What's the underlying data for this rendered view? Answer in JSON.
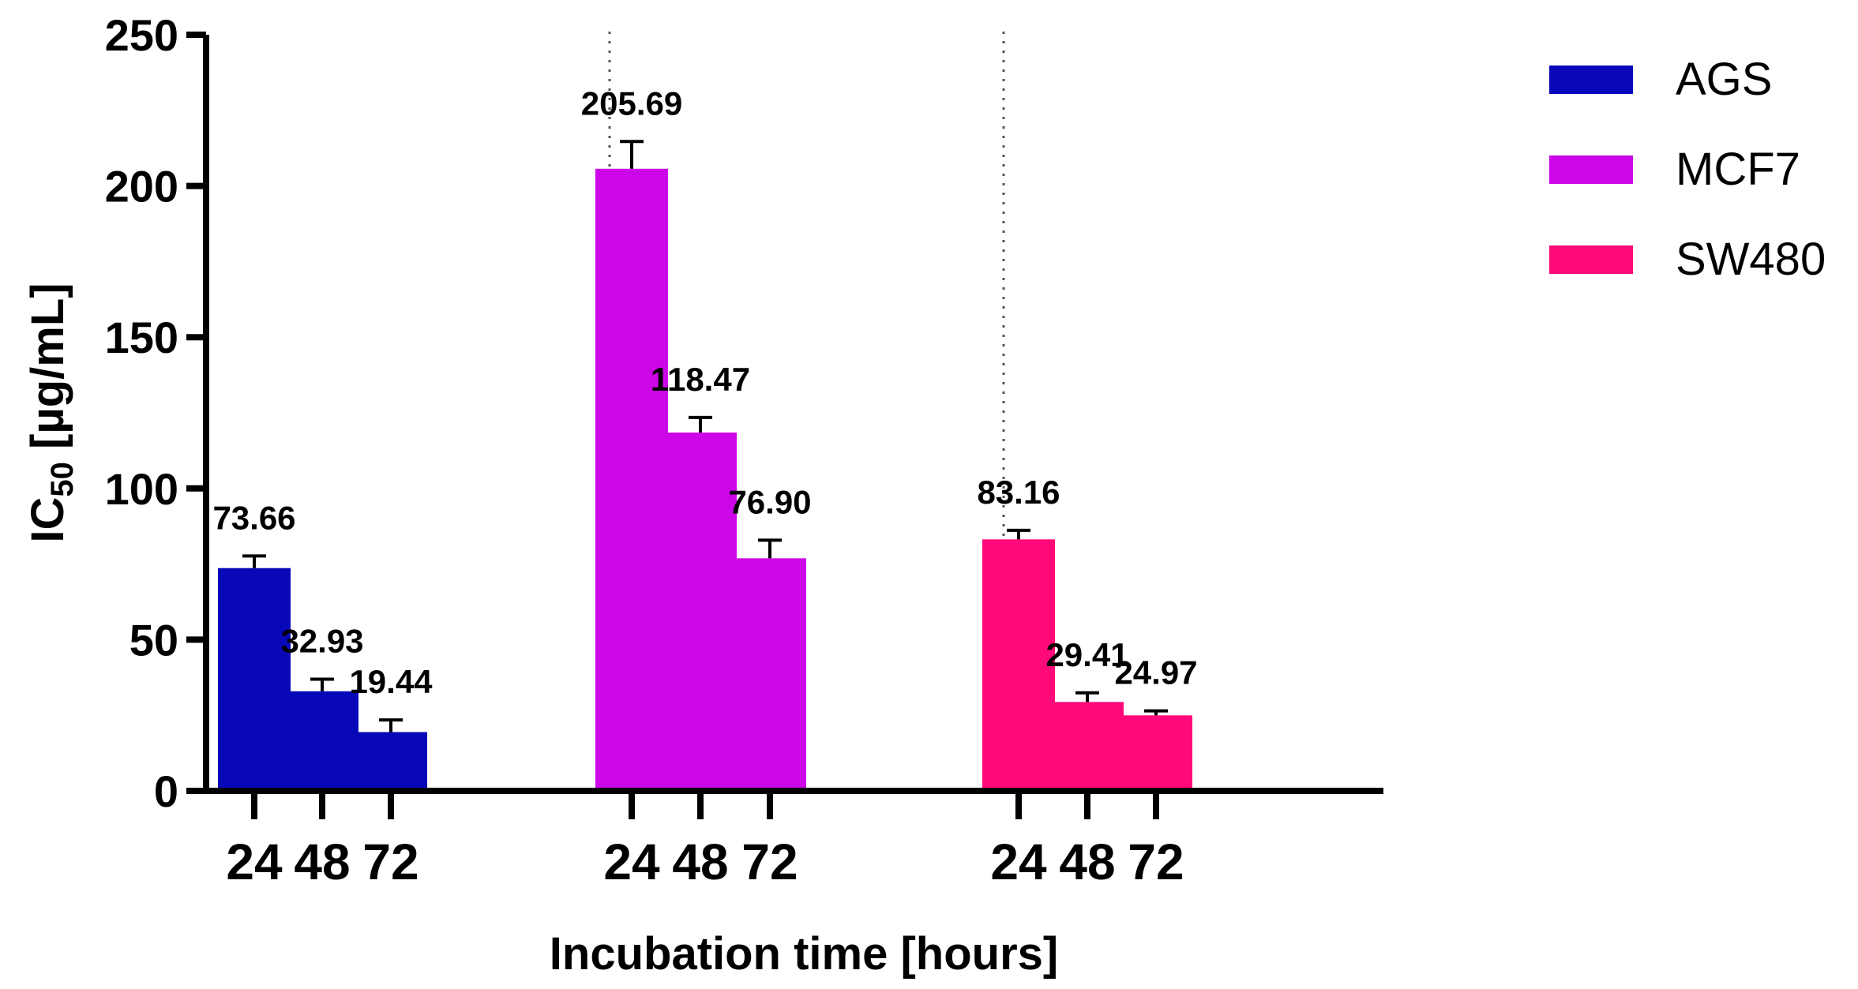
{
  "chart_data": {
    "type": "bar",
    "title": "",
    "xlabel": "Incubation time [hours]",
    "ylabel_main": "IC",
    "ylabel_subscript": "50",
    "ylabel_unit": " [µg/mL]",
    "ylim": [
      0,
      250
    ],
    "yticks": [
      0,
      50,
      100,
      150,
      200,
      250
    ],
    "grid": false,
    "legend_position": "top-right",
    "colors": {
      "AGS": "#0808b8",
      "MCF7": "#cc06e6",
      "SW480": "#ff0a78"
    },
    "series": [
      {
        "name": "AGS",
        "categories": [
          "24",
          "48",
          "72"
        ],
        "values": [
          73.66,
          32.93,
          19.44
        ],
        "errors": [
          4.0,
          4.0,
          4.0
        ],
        "labels": [
          "73.66",
          "32.93",
          "19.44"
        ]
      },
      {
        "name": "MCF7",
        "categories": [
          "24",
          "48",
          "72"
        ],
        "values": [
          205.69,
          118.47,
          76.9
        ],
        "errors": [
          9.0,
          5.0,
          6.0
        ],
        "labels": [
          "205.69",
          "118.47",
          "76.90"
        ]
      },
      {
        "name": "SW480",
        "categories": [
          "24",
          "48",
          "72"
        ],
        "values": [
          83.16,
          29.41,
          24.97
        ],
        "errors": [
          3.0,
          3.0,
          1.5
        ],
        "labels": [
          "83.16",
          "29.41",
          "24.97"
        ]
      }
    ]
  }
}
